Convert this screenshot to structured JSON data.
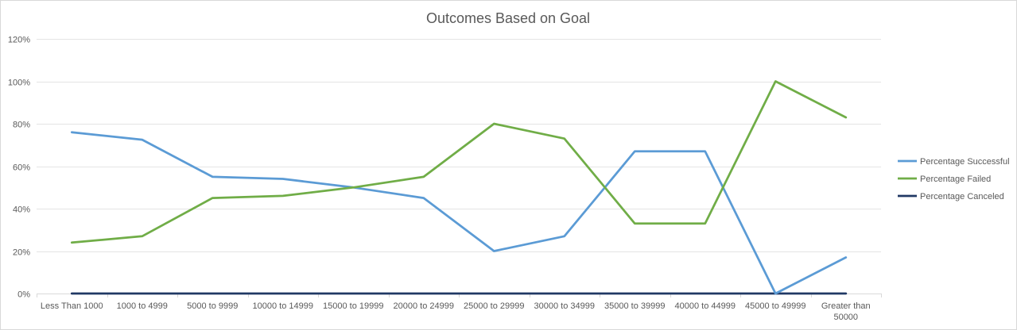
{
  "chart_data": {
    "type": "line",
    "title": "Outcomes Based on Goal",
    "xlabel": "",
    "ylabel": "",
    "categories": [
      "Less Than 1000",
      "1000 to 4999",
      "5000 to 9999",
      "10000 to 14999",
      "15000 to 19999",
      "20000 to 24999",
      "25000 to 29999",
      "30000 to 34999",
      "35000 to 39999",
      "40000 to 44999",
      "45000 to 49999",
      "Greater than 50000"
    ],
    "category_lines": [
      [
        "Less Than 1000"
      ],
      [
        "1000 to 4999"
      ],
      [
        "5000 to 9999"
      ],
      [
        "10000 to 14999"
      ],
      [
        "15000 to 19999"
      ],
      [
        "20000 to 24999"
      ],
      [
        "25000 to 29999"
      ],
      [
        "30000 to 34999"
      ],
      [
        "35000 to 39999"
      ],
      [
        "40000 to 44999"
      ],
      [
        "45000 to 49999"
      ],
      [
        "Greater than",
        "50000"
      ]
    ],
    "ylim": [
      0,
      1.2
    ],
    "yticks": [
      0,
      0.2,
      0.4,
      0.6,
      0.8,
      1.0,
      1.2
    ],
    "ytick_labels": [
      "0%",
      "20%",
      "40%",
      "60%",
      "80%",
      "100%",
      "120%"
    ],
    "grid": true,
    "legend_position": "right",
    "series": [
      {
        "name": "Percentage Successful",
        "color": "#5b9bd5",
        "values": [
          0.76,
          0.725,
          0.55,
          0.54,
          0.5,
          0.45,
          0.2,
          0.27,
          0.67,
          0.67,
          0.0,
          0.17
        ]
      },
      {
        "name": "Percentage Failed",
        "color": "#70ad47",
        "values": [
          0.24,
          0.27,
          0.45,
          0.46,
          0.5,
          0.55,
          0.8,
          0.73,
          0.33,
          0.33,
          1.0,
          0.83
        ]
      },
      {
        "name": "Percentage Canceled",
        "color": "#203864",
        "values": [
          0,
          0,
          0,
          0,
          0,
          0,
          0,
          0,
          0,
          0,
          0,
          0
        ]
      }
    ]
  }
}
